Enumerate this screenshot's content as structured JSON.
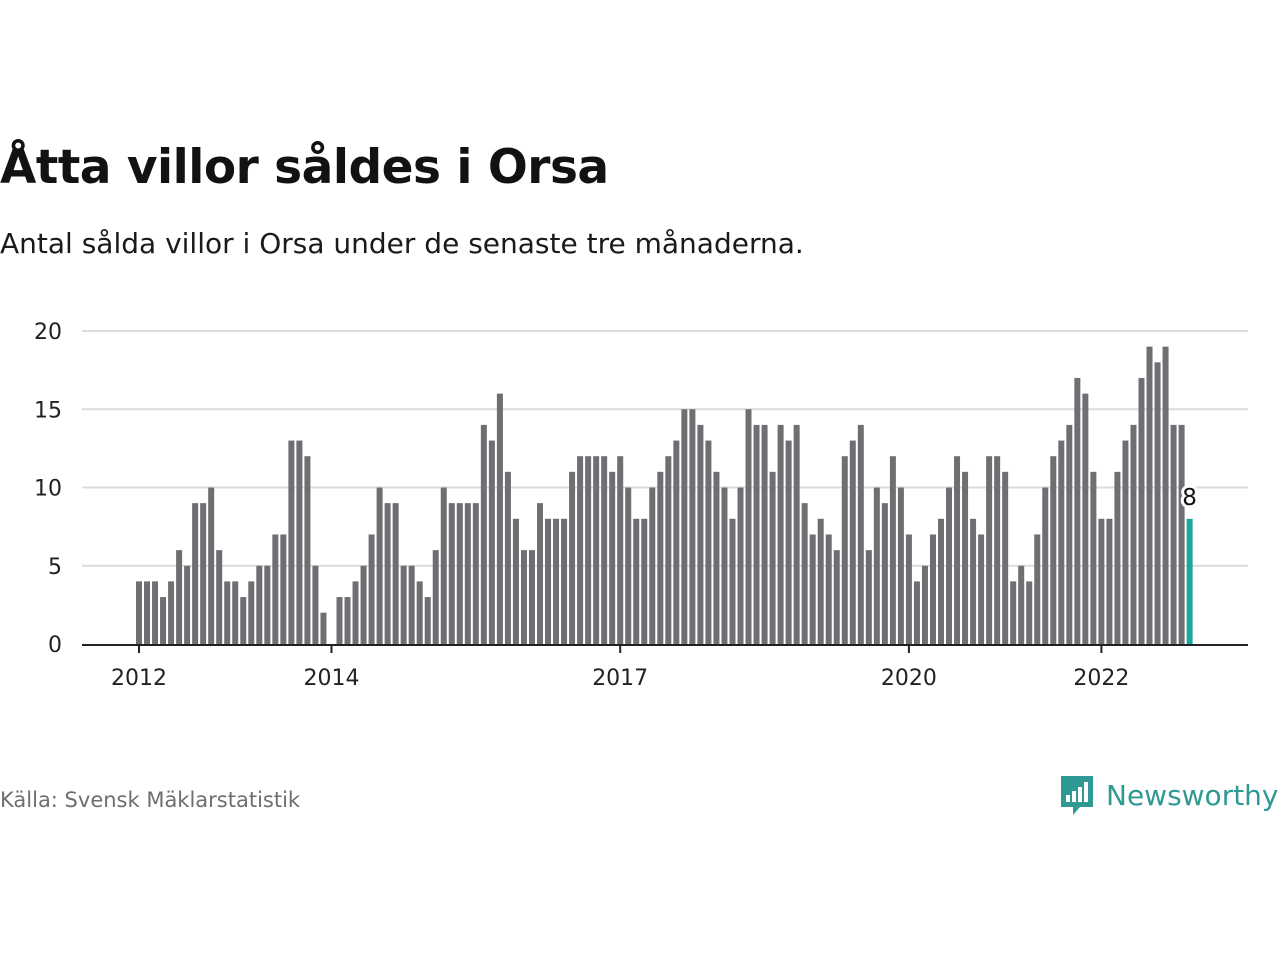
{
  "header": {
    "title": "Åtta villor såldes i Orsa",
    "subtitle": "Antal sålda villor i Orsa under de senaste tre månaderna."
  },
  "footer": {
    "source": "Källa: Svensk Mäklarstatistik",
    "brand": "Newsworthy"
  },
  "colors": {
    "bar": "#6f6e73",
    "highlight": "#1aa89b",
    "grid": "#dcdcdc",
    "axis": "#222222",
    "brand": "#2f9a93"
  },
  "icons": {
    "logo": "bar-chart-speech-bubble-icon"
  },
  "chart_data": {
    "type": "bar",
    "title": "Åtta villor såldes i Orsa",
    "subtitle": "Antal sålda villor i Orsa under de senaste tre månaderna.",
    "xlabel": "",
    "ylabel": "",
    "ylim": [
      0,
      20
    ],
    "yticks": [
      0,
      5,
      10,
      15,
      20
    ],
    "xtick_labels": [
      {
        "label": "2012",
        "index": 0
      },
      {
        "label": "2014",
        "index": 24
      },
      {
        "label": "2017",
        "index": 60
      },
      {
        "label": "2020",
        "index": 96
      },
      {
        "label": "2022",
        "index": 120
      }
    ],
    "grid": true,
    "legend": "none",
    "x_start": "2012-01",
    "x_interval": "month",
    "values": [
      4,
      4,
      4,
      3,
      4,
      6,
      5,
      9,
      9,
      10,
      6,
      4,
      4,
      3,
      4,
      5,
      5,
      7,
      7,
      13,
      13,
      12,
      5,
      2,
      0,
      3,
      3,
      4,
      5,
      7,
      10,
      9,
      9,
      5,
      5,
      4,
      3,
      6,
      10,
      9,
      9,
      9,
      9,
      14,
      13,
      16,
      11,
      8,
      6,
      6,
      9,
      8,
      8,
      8,
      11,
      12,
      12,
      12,
      12,
      11,
      12,
      10,
      8,
      8,
      10,
      11,
      12,
      13,
      15,
      15,
      14,
      13,
      11,
      10,
      8,
      10,
      15,
      14,
      14,
      11,
      14,
      13,
      14,
      9,
      7,
      8,
      7,
      6,
      12,
      13,
      14,
      6,
      10,
      9,
      12,
      10,
      7,
      4,
      5,
      7,
      8,
      10,
      12,
      11,
      8,
      7,
      12,
      12,
      11,
      4,
      5,
      4,
      7,
      10,
      12,
      13,
      14,
      17,
      16,
      11,
      8,
      8,
      11,
      13,
      14,
      17,
      19,
      18,
      19,
      14,
      14,
      8
    ],
    "highlight_index": 131,
    "highlight_label": "8"
  }
}
